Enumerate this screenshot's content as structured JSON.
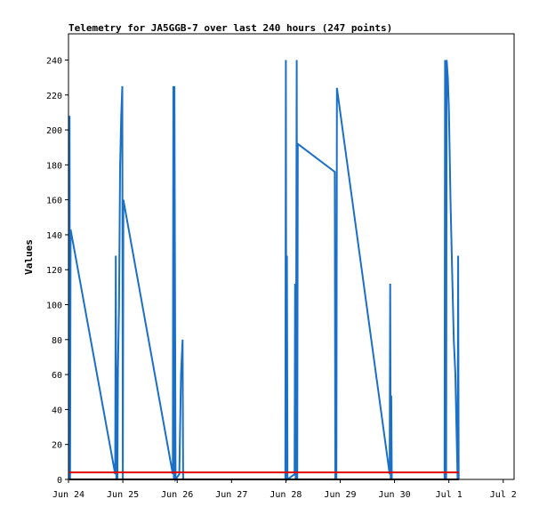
{
  "chart_data": {
    "type": "line",
    "title": "Telemetry for JA5GGB-7 over last 240 hours (247 points)",
    "xlabel": "",
    "ylabel": "Values",
    "x_tick_labels": [
      "Jun 24",
      "Jun 25",
      "Jun 26",
      "Jun 27",
      "Jun 28",
      "Jun 29",
      "Jun 30",
      "Jul 1",
      "Jul 2"
    ],
    "xlim": [
      0,
      8.2
    ],
    "ylim": [
      0,
      255
    ],
    "y_ticks": [
      0,
      20,
      40,
      60,
      80,
      100,
      120,
      140,
      160,
      180,
      200,
      220,
      240
    ],
    "grid": false,
    "legend": "none",
    "series": [
      {
        "color": "#1a6fc7",
        "points": [
          [
            0.02,
            0
          ],
          [
            0.02,
            208
          ],
          [
            0.03,
            0
          ],
          [
            0.04,
            143
          ],
          [
            0.86,
            3
          ],
          [
            0.87,
            128
          ],
          [
            0.88,
            0
          ],
          [
            0.89,
            64
          ],
          [
            0.9,
            0
          ],
          [
            0.91,
            64
          ],
          [
            0.93,
            98
          ],
          [
            0.95,
            178
          ],
          [
            0.97,
            208
          ],
          [
            0.99,
            225
          ],
          [
            1.0,
            0
          ],
          [
            1.01,
            160
          ],
          [
            1.92,
            3
          ],
          [
            1.93,
            225
          ],
          [
            1.94,
            0
          ],
          [
            1.95,
            225
          ],
          [
            1.97,
            0
          ],
          [
            2.04,
            3
          ],
          [
            2.07,
            60
          ],
          [
            2.1,
            80
          ],
          [
            2.11,
            0
          ],
          [
            3.99,
            0
          ],
          [
            4.0,
            240
          ],
          [
            4.01,
            0
          ],
          [
            4.02,
            128
          ],
          [
            4.03,
            0
          ],
          [
            4.16,
            3
          ],
          [
            4.17,
            112
          ],
          [
            4.18,
            0
          ],
          [
            4.19,
            96
          ],
          [
            4.2,
            240
          ],
          [
            4.21,
            0
          ],
          [
            4.22,
            192
          ],
          [
            4.9,
            176
          ],
          [
            4.91,
            0
          ],
          [
            4.92,
            96
          ],
          [
            4.93,
            0
          ],
          [
            4.94,
            224
          ],
          [
            5.91,
            3
          ],
          [
            5.92,
            112
          ],
          [
            5.93,
            0
          ],
          [
            5.94,
            48
          ],
          [
            5.95,
            0
          ],
          [
            6.92,
            0
          ],
          [
            6.93,
            240
          ],
          [
            6.95,
            0
          ],
          [
            6.96,
            240
          ],
          [
            6.98,
            230
          ],
          [
            7.0,
            212
          ],
          [
            7.03,
            160
          ],
          [
            7.06,
            120
          ],
          [
            7.09,
            80
          ],
          [
            7.12,
            60
          ],
          [
            7.14,
            30
          ],
          [
            7.16,
            0
          ],
          [
            7.17,
            128
          ],
          [
            7.18,
            0
          ]
        ]
      },
      {
        "color": "#e00000",
        "points": [
          [
            0.02,
            4
          ],
          [
            7.18,
            4
          ]
        ]
      },
      {
        "color": "#000000",
        "points": [
          [
            0.02,
            0
          ],
          [
            7.18,
            0
          ]
        ]
      }
    ]
  }
}
